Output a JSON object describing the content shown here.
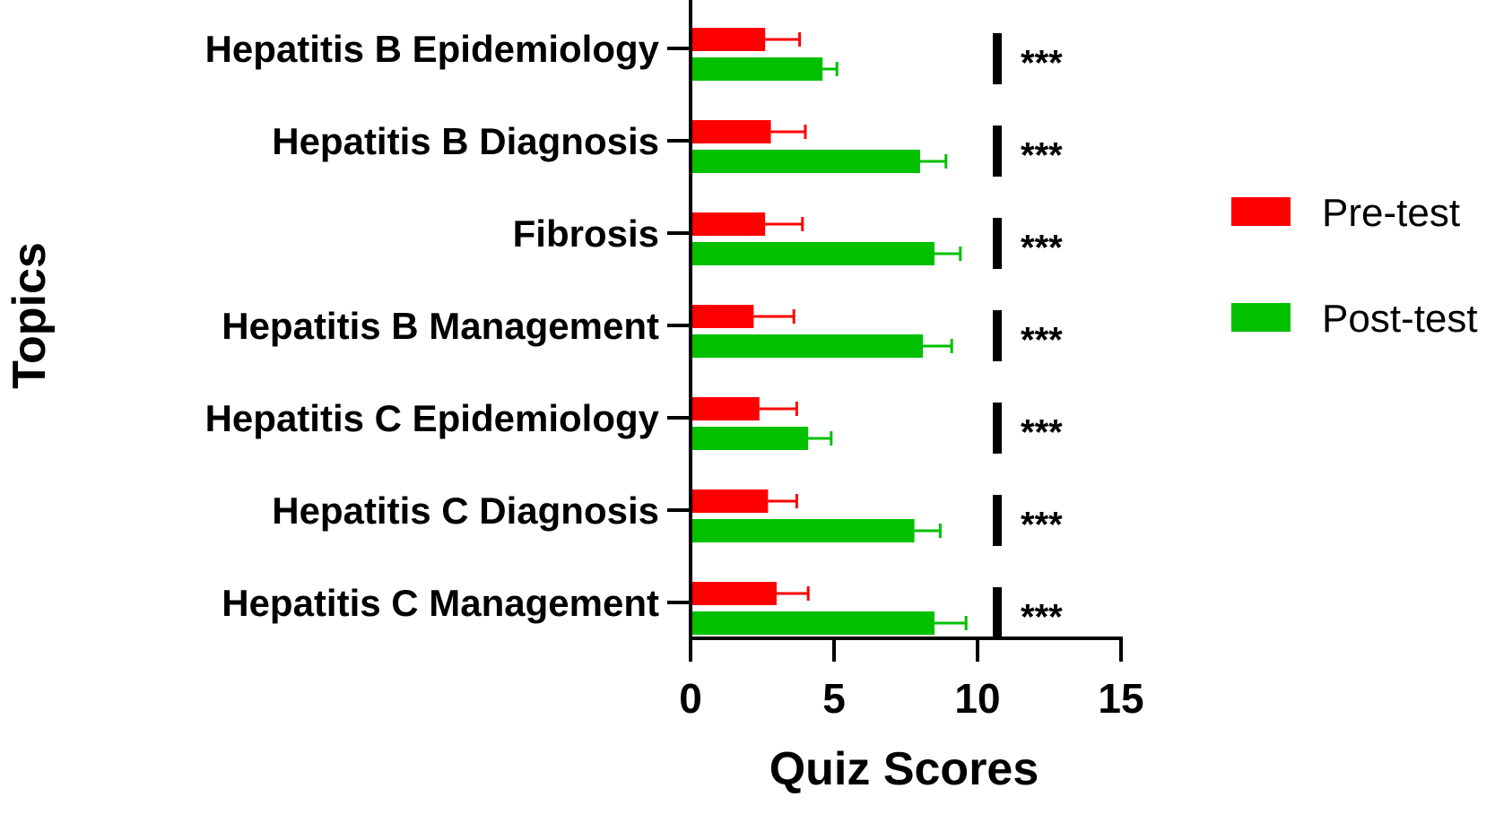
{
  "chart_data": {
    "type": "bar",
    "orientation": "horizontal",
    "categories": [
      "Hepatitis B Epidemiology",
      "Hepatitis B Diagnosis",
      "Fibrosis",
      "Hepatitis B Management",
      "Hepatitis C Epidemiology",
      "Hepatitis C Diagnosis",
      "Hepatitis C Management"
    ],
    "series": [
      {
        "name": "Pre-test",
        "color": "#ff0000",
        "values": [
          2.6,
          2.8,
          2.6,
          2.2,
          2.4,
          2.7,
          3.0
        ],
        "errors": [
          1.2,
          1.2,
          1.3,
          1.4,
          1.3,
          1.0,
          1.1
        ]
      },
      {
        "name": "Post-test",
        "color": "#00c000",
        "values": [
          4.6,
          8.0,
          8.5,
          8.1,
          4.1,
          7.8,
          8.5
        ],
        "errors": [
          0.5,
          0.9,
          0.9,
          1.0,
          0.8,
          0.9,
          1.1
        ]
      }
    ],
    "significance": [
      "***",
      "***",
      "***",
      "***",
      "***",
      "***",
      "***"
    ],
    "xlabel": "Quiz  Scores",
    "ylabel": "Topics",
    "xlim": [
      0,
      15
    ],
    "xticks": [
      "0",
      "5",
      "10",
      "15"
    ],
    "grid": false,
    "legend_position": "right"
  }
}
